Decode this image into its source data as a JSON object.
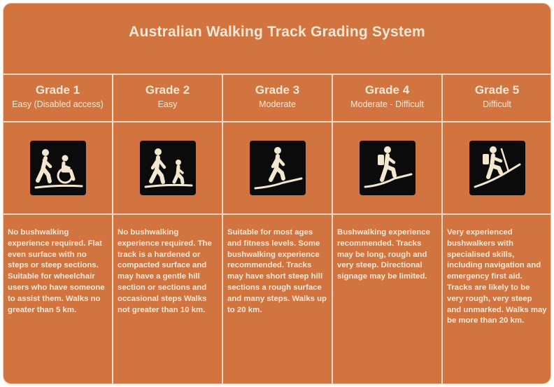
{
  "title": "Australian Walking Track Grading System",
  "colors": {
    "background": "#d2743f",
    "text": "#fbe8d6",
    "divider": "#f1dcc8",
    "icon_bg": "#0b0b0b",
    "icon_fg": "#f4e7cf"
  },
  "grades": [
    {
      "name": "Grade 1",
      "subtitle": "Easy (Disabled access)",
      "icon": "walker-and-wheelchair-icon",
      "description": "No bushwalking experience required. Flat even surface with no steps or steep sections. Suitable for wheelchair users who have someone to assist them. Walks no greater than 5 km."
    },
    {
      "name": "Grade 2",
      "subtitle": "Easy",
      "icon": "adult-and-child-walking-icon",
      "description": "No bushwalking experience required. The track is a hardened or compacted surface and may have a gentle hill section or sections and occasional steps Walks not greater than 10 km."
    },
    {
      "name": "Grade 3",
      "subtitle": "Moderate",
      "icon": "walker-on-incline-icon",
      "description": "Suitable for most ages and fitness levels. Some bushwalking experience recommended. Tracks may have short steep hill sections a rough surface and many steps. Walks up to 20 km."
    },
    {
      "name": "Grade 4",
      "subtitle": "Moderate - Difficult",
      "icon": "hiker-with-backpack-icon",
      "description": "Bushwalking experience recommended. Tracks may be long, rough and very steep. Directional signage may be limited."
    },
    {
      "name": "Grade 5",
      "subtitle": "Difficult",
      "icon": "hiker-with-pole-steep-icon",
      "description": "Very experienced bushwalkers with specialised skills, including navigation and emergency first aid. Tracks are likely to be very rough, very steep and unmarked. Walks may be more than 20 km."
    }
  ]
}
